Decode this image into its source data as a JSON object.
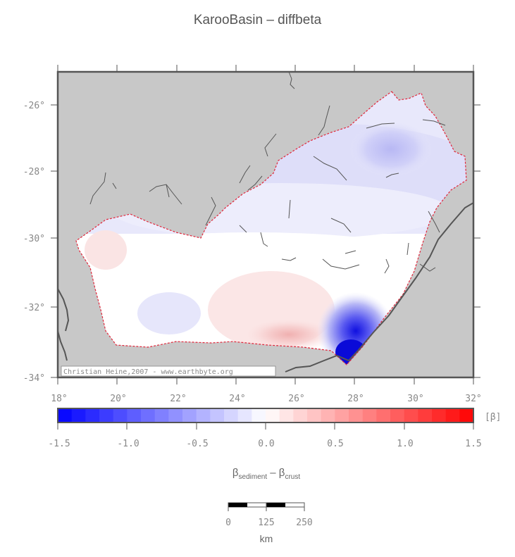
{
  "title": "KarooBasin – diffbeta",
  "map": {
    "lat_labels": [
      "-26°",
      "-28°",
      "-30°",
      "-32°",
      "-34°"
    ],
    "lon_labels": [
      "18°",
      "20°",
      "22°",
      "24°",
      "26°",
      "28°",
      "30°",
      "32°"
    ],
    "credit": "Christian Heine,2007 - www.earthbyte.org",
    "land_color": "#c8c8c8",
    "basin_outline_color": "#e0283c"
  },
  "colorbar": {
    "unit": "[β]",
    "ticks": [
      "-1.5",
      "-1.0",
      "-0.5",
      "0.0",
      "0.5",
      "1.0",
      "1.5"
    ],
    "min_color": "#0000ff",
    "mid_color": "#ffffff",
    "max_color": "#ff0000"
  },
  "axis_label": {
    "beta1": "β",
    "sub1": "sediment",
    "minus": " – ",
    "beta2": "β",
    "sub2": "crust"
  },
  "scalebar": {
    "ticks": [
      "0",
      "125",
      "250"
    ],
    "unit": "km"
  }
}
